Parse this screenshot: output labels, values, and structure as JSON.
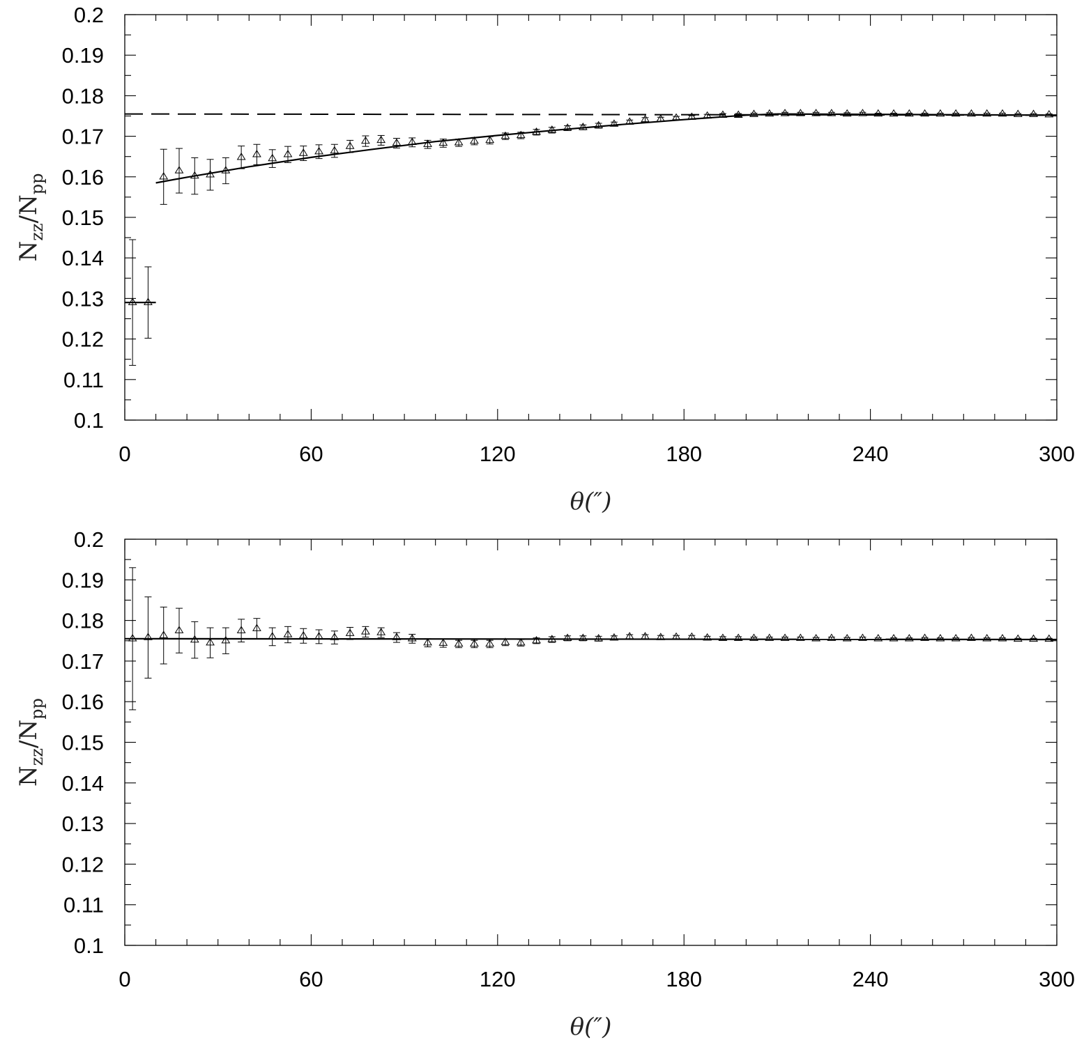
{
  "chart_data": [
    {
      "type": "scatter",
      "title": "",
      "xlabel": "θ(″)",
      "ylabel": "N_zz/N_pp",
      "ylabel_main": "N",
      "ylabel_sub1": "zz",
      "ylabel_sub2": "pp",
      "xlim": [
        0,
        300
      ],
      "ylim": [
        0.1,
        0.2
      ],
      "xticks": [
        "0",
        "60",
        "120",
        "180",
        "240",
        "300"
      ],
      "yticks": [
        "0.1",
        "0.11",
        "0.12",
        "0.13",
        "0.14",
        "0.15",
        "0.16",
        "0.17",
        "0.18",
        "0.19",
        "0.2"
      ],
      "grid": false,
      "series": [
        {
          "marker": "triangle",
          "x": [
            2.5,
            7.5,
            12.5,
            17.5,
            22.5,
            27.5,
            32.5,
            37.5,
            42.5,
            47.5,
            52.5,
            57.5,
            62.5,
            67.5,
            72.5,
            77.5,
            82.5,
            87.5,
            92.5,
            97.5,
            102.5,
            107.5,
            112.5,
            117.5,
            122.5,
            127.5,
            132.5,
            137.5,
            142.5,
            147.5,
            152.5,
            157.5,
            162.5,
            167.5,
            172.5,
            177.5,
            182.5,
            187.5,
            192.5,
            197.5,
            202.5,
            207.5,
            212.5,
            217.5,
            222.5,
            227.5,
            232.5,
            237.5,
            242.5,
            247.5,
            252.5,
            257.5,
            262.5,
            267.5,
            272.5,
            277.5,
            282.5,
            287.5,
            292.5,
            297.5
          ],
          "y": [
            0.129,
            0.129,
            0.16,
            0.1615,
            0.1602,
            0.1605,
            0.1615,
            0.1648,
            0.1655,
            0.1645,
            0.1655,
            0.1658,
            0.1662,
            0.1664,
            0.1675,
            0.1688,
            0.169,
            0.1683,
            0.1685,
            0.168,
            0.1683,
            0.1684,
            0.1688,
            0.169,
            0.17,
            0.1702,
            0.171,
            0.1715,
            0.172,
            0.1722,
            0.1726,
            0.173,
            0.1735,
            0.1741,
            0.1742,
            0.1745,
            0.1747,
            0.175,
            0.1752,
            0.1752,
            0.1754,
            0.1755,
            0.1756,
            0.1756,
            0.1756,
            0.1756,
            0.1755,
            0.1756,
            0.1755,
            0.1755,
            0.1755,
            0.1755,
            0.1755,
            0.1755,
            0.1755,
            0.1755,
            0.1755,
            0.1754,
            0.1754,
            0.1753
          ],
          "yerr": [
            0.0155,
            0.0088,
            0.0068,
            0.0055,
            0.0045,
            0.0038,
            0.0032,
            0.0028,
            0.0025,
            0.0022,
            0.002,
            0.0018,
            0.0017,
            0.0016,
            0.0015,
            0.0013,
            0.0012,
            0.0012,
            0.0011,
            0.001,
            0.001,
            0.0009,
            0.0009,
            0.0009,
            0.0008,
            0.0008,
            0.0007,
            0.0007,
            0.0006,
            0.0006,
            0.0006,
            0.0005,
            0.0005,
            0.0005,
            0.0005,
            0.0004,
            0.0004,
            0.0004,
            0.0004,
            0.0004,
            0.0003,
            0.0003,
            0.0003,
            0.0003,
            0.0003,
            0.0003,
            0.0003,
            0.0003,
            0.0002,
            0.0002,
            0.0002,
            0.0002,
            0.0002,
            0.0002,
            0.0002,
            0.0002,
            0.0002,
            0.0002,
            0.0002,
            0.0002
          ]
        }
      ],
      "lines": [
        {
          "style": "solid",
          "x": [
            0,
            10
          ],
          "y": [
            0.129,
            0.129
          ]
        },
        {
          "style": "solid",
          "x": [
            10,
            20,
            40,
            60,
            80,
            100,
            120,
            140,
            160,
            180,
            200,
            210
          ],
          "y": [
            0.1585,
            0.1599,
            0.1625,
            0.1648,
            0.1668,
            0.1687,
            0.1702,
            0.1716,
            0.1729,
            0.1741,
            0.1752,
            0.1755
          ]
        },
        {
          "style": "solid",
          "x": [
            210,
            300
          ],
          "y": [
            0.1755,
            0.1752
          ]
        },
        {
          "style": "dashed",
          "x": [
            0,
            300
          ],
          "y": [
            0.1755,
            0.1752
          ]
        }
      ]
    },
    {
      "type": "scatter",
      "title": "",
      "xlabel": "θ(″)",
      "ylabel": "N_zz/N_pp",
      "ylabel_main": "N",
      "ylabel_sub1": "zz",
      "ylabel_sub2": "pp",
      "xlim": [
        0,
        300
      ],
      "ylim": [
        0.1,
        0.2
      ],
      "xticks": [
        "0",
        "60",
        "120",
        "180",
        "240",
        "300"
      ],
      "yticks": [
        "0.1",
        "0.11",
        "0.12",
        "0.13",
        "0.14",
        "0.15",
        "0.16",
        "0.17",
        "0.18",
        "0.19",
        "0.2"
      ],
      "grid": false,
      "series": [
        {
          "marker": "triangle",
          "x": [
            2.5,
            7.5,
            12.5,
            17.5,
            22.5,
            27.5,
            32.5,
            37.5,
            42.5,
            47.5,
            52.5,
            57.5,
            62.5,
            67.5,
            72.5,
            77.5,
            82.5,
            87.5,
            92.5,
            97.5,
            102.5,
            107.5,
            112.5,
            117.5,
            122.5,
            127.5,
            132.5,
            137.5,
            142.5,
            147.5,
            152.5,
            157.5,
            162.5,
            167.5,
            172.5,
            177.5,
            182.5,
            187.5,
            192.5,
            197.5,
            202.5,
            207.5,
            212.5,
            217.5,
            222.5,
            227.5,
            232.5,
            237.5,
            242.5,
            247.5,
            252.5,
            257.5,
            262.5,
            267.5,
            272.5,
            277.5,
            282.5,
            287.5,
            292.5,
            297.5
          ],
          "y": [
            0.1755,
            0.1758,
            0.1763,
            0.1775,
            0.1752,
            0.1745,
            0.175,
            0.1775,
            0.178,
            0.176,
            0.1765,
            0.1762,
            0.176,
            0.1758,
            0.1768,
            0.1772,
            0.177,
            0.1758,
            0.1755,
            0.1745,
            0.1744,
            0.1742,
            0.1742,
            0.1742,
            0.1746,
            0.1745,
            0.175,
            0.1753,
            0.1756,
            0.1756,
            0.1755,
            0.1757,
            0.176,
            0.176,
            0.1758,
            0.1759,
            0.1759,
            0.1757,
            0.1756,
            0.1756,
            0.1756,
            0.1756,
            0.1756,
            0.1756,
            0.1755,
            0.1756,
            0.1755,
            0.1756,
            0.1755,
            0.1755,
            0.1755,
            0.1756,
            0.1755,
            0.1755,
            0.1756,
            0.1755,
            0.1755,
            0.1754,
            0.1754,
            0.1754
          ],
          "yerr": [
            0.0175,
            0.01,
            0.007,
            0.0055,
            0.0045,
            0.0037,
            0.0032,
            0.0028,
            0.0025,
            0.0022,
            0.002,
            0.0018,
            0.0017,
            0.0016,
            0.0015,
            0.0013,
            0.0012,
            0.0012,
            0.0011,
            0.001,
            0.001,
            0.0009,
            0.0009,
            0.0009,
            0.0008,
            0.0008,
            0.0007,
            0.0007,
            0.0006,
            0.0006,
            0.0006,
            0.0005,
            0.0005,
            0.0005,
            0.0005,
            0.0004,
            0.0004,
            0.0004,
            0.0004,
            0.0004,
            0.0003,
            0.0003,
            0.0003,
            0.0003,
            0.0003,
            0.0003,
            0.0003,
            0.0003,
            0.0002,
            0.0002,
            0.0002,
            0.0002,
            0.0002,
            0.0002,
            0.0002,
            0.0002,
            0.0002,
            0.0002,
            0.0002,
            0.0002
          ]
        }
      ],
      "lines": [
        {
          "style": "solid",
          "x": [
            0,
            300
          ],
          "y": [
            0.1755,
            0.1753
          ]
        }
      ]
    }
  ]
}
